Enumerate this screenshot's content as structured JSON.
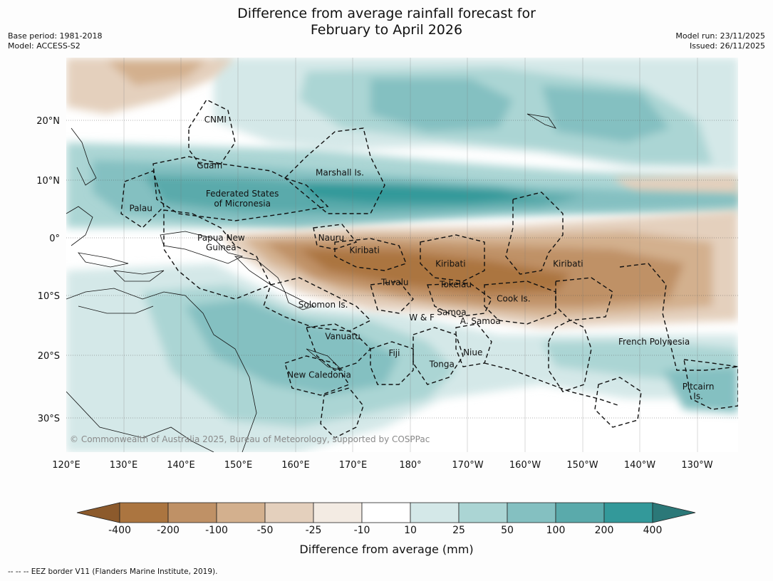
{
  "title": {
    "line1": "Difference from average rainfall forecast for",
    "line2": "February to April 2026"
  },
  "meta": {
    "base_period": "Base period: 1981-2018",
    "model": "Model: ACCESS-S2",
    "model_run": "Model run: 23/11/2025",
    "issued": "Issued: 26/11/2025"
  },
  "axes": {
    "lon_labels": [
      "120°E",
      "130°E",
      "140°E",
      "150°E",
      "160°E",
      "170°E",
      "180°",
      "170°W",
      "160°W",
      "150°W",
      "140°W",
      "130°W"
    ],
    "lat_labels": [
      "20°N",
      "10°N",
      "0°",
      "10°S",
      "20°S",
      "30°S"
    ],
    "lon_range": [
      120,
      237
    ],
    "lat_range": [
      -35,
      31
    ]
  },
  "places": [
    {
      "name": "CNMI",
      "lon": 146,
      "lat": 20
    },
    {
      "name": "Guam",
      "lon": 145,
      "lat": 12.2
    },
    {
      "name": "Marshall Is.",
      "lon": 167.7,
      "lat": 11
    },
    {
      "name": "Federated States",
      "lon": 150.7,
      "lat": 7.5
    },
    {
      "name": "of Micronesia",
      "lon": 150.7,
      "lat": 5.8
    },
    {
      "name": "Palau",
      "lon": 133,
      "lat": 5
    },
    {
      "name": "Papua New",
      "lon": 147,
      "lat": 0
    },
    {
      "name": "Guinea",
      "lon": 147,
      "lat": -1.6
    },
    {
      "name": "Nauru",
      "lon": 166.2,
      "lat": 0
    },
    {
      "name": "Kiribati",
      "lon": 172,
      "lat": -2.1
    },
    {
      "name": "Kiribati",
      "lon": 187,
      "lat": -4.4
    },
    {
      "name": "Kiribati",
      "lon": 207.5,
      "lat": -4.4
    },
    {
      "name": "Tuvalu",
      "lon": 177.3,
      "lat": -7.5
    },
    {
      "name": "Tokelau",
      "lon": 187.9,
      "lat": -7.9
    },
    {
      "name": "Cook Is.",
      "lon": 198,
      "lat": -10.3
    },
    {
      "name": "Solomon Is.",
      "lon": 164.8,
      "lat": -11.3
    },
    {
      "name": "W & F",
      "lon": 182,
      "lat": -13.5
    },
    {
      "name": "Samoa",
      "lon": 187.2,
      "lat": -12.6
    },
    {
      "name": "A. Samoa",
      "lon": 192.2,
      "lat": -14.1
    },
    {
      "name": "Vanuatu",
      "lon": 168.2,
      "lat": -16.7
    },
    {
      "name": "French Polynesia",
      "lon": 222.5,
      "lat": -17.6
    },
    {
      "name": "Fiji",
      "lon": 177.2,
      "lat": -19.5
    },
    {
      "name": "Niue",
      "lon": 190.9,
      "lat": -19.4
    },
    {
      "name": "New Caledonia",
      "lon": 164.1,
      "lat": -23.2
    },
    {
      "name": "Tonga",
      "lon": 185.5,
      "lat": -21.4
    },
    {
      "name": "Pitcairn",
      "lon": 230.2,
      "lat": -25.2
    },
    {
      "name": "Is.",
      "lon": 230.2,
      "lat": -26.8
    }
  ],
  "copyright": "© Commonwealth of Australia 2025, Bureau of Meteorology, supported by COSPPac",
  "colorbar": {
    "ticks": [
      "-400",
      "-200",
      "-100",
      "-50",
      "-25",
      "-10",
      "10",
      "25",
      "50",
      "100",
      "200",
      "400"
    ],
    "colors": [
      "#8c5a2c",
      "#ab7540",
      "#bf9166",
      "#d3b08e",
      "#e4d0bd",
      "#f3ebe3",
      "#ffffff",
      "#d4e8e8",
      "#abd5d4",
      "#84c0c1",
      "#5aaaab",
      "#33999a",
      "#2b7878"
    ],
    "label": "Difference from average (mm)"
  },
  "footer": "--  --  -- EEZ border V11 (Flanders Marine Institute, 2019)."
}
